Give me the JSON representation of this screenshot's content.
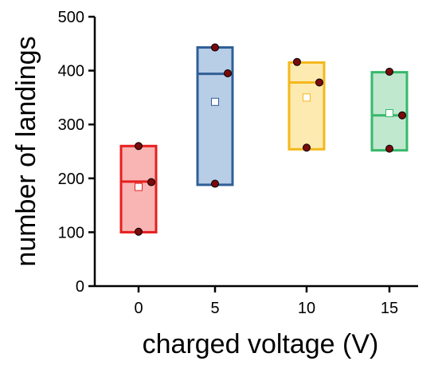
{
  "chart_data": {
    "type": "box",
    "xlabel": "charged voltage (V)",
    "ylabel": "number of landings",
    "ylim": [
      0,
      500
    ],
    "yticks": [
      0,
      100,
      200,
      300,
      400,
      500
    ],
    "categories": [
      "0",
      "5",
      "10",
      "15"
    ],
    "grid": false,
    "legend": "none",
    "groups": [
      {
        "category": "0",
        "box_low": 100,
        "box_high": 260,
        "median": 194,
        "mean": 184,
        "points": [
          260,
          193,
          101
        ],
        "fill": "#f9b4b4",
        "stroke": "#e61e1e"
      },
      {
        "category": "5",
        "box_low": 188,
        "box_high": 443,
        "median": 394,
        "mean": 342,
        "points": [
          443,
          395,
          190
        ],
        "fill": "#b8cde6",
        "stroke": "#2f5f96"
      },
      {
        "category": "10",
        "box_low": 254,
        "box_high": 415,
        "median": 378,
        "mean": 350,
        "points": [
          416,
          378,
          257
        ],
        "fill": "#fdeab0",
        "stroke": "#f4b81c"
      },
      {
        "category": "15",
        "box_low": 252,
        "box_high": 397,
        "median": 317,
        "mean": 321,
        "points": [
          398,
          317,
          255
        ],
        "fill": "#bfe8cf",
        "stroke": "#37b86a"
      }
    ],
    "point_color": "#7a0b0b"
  }
}
